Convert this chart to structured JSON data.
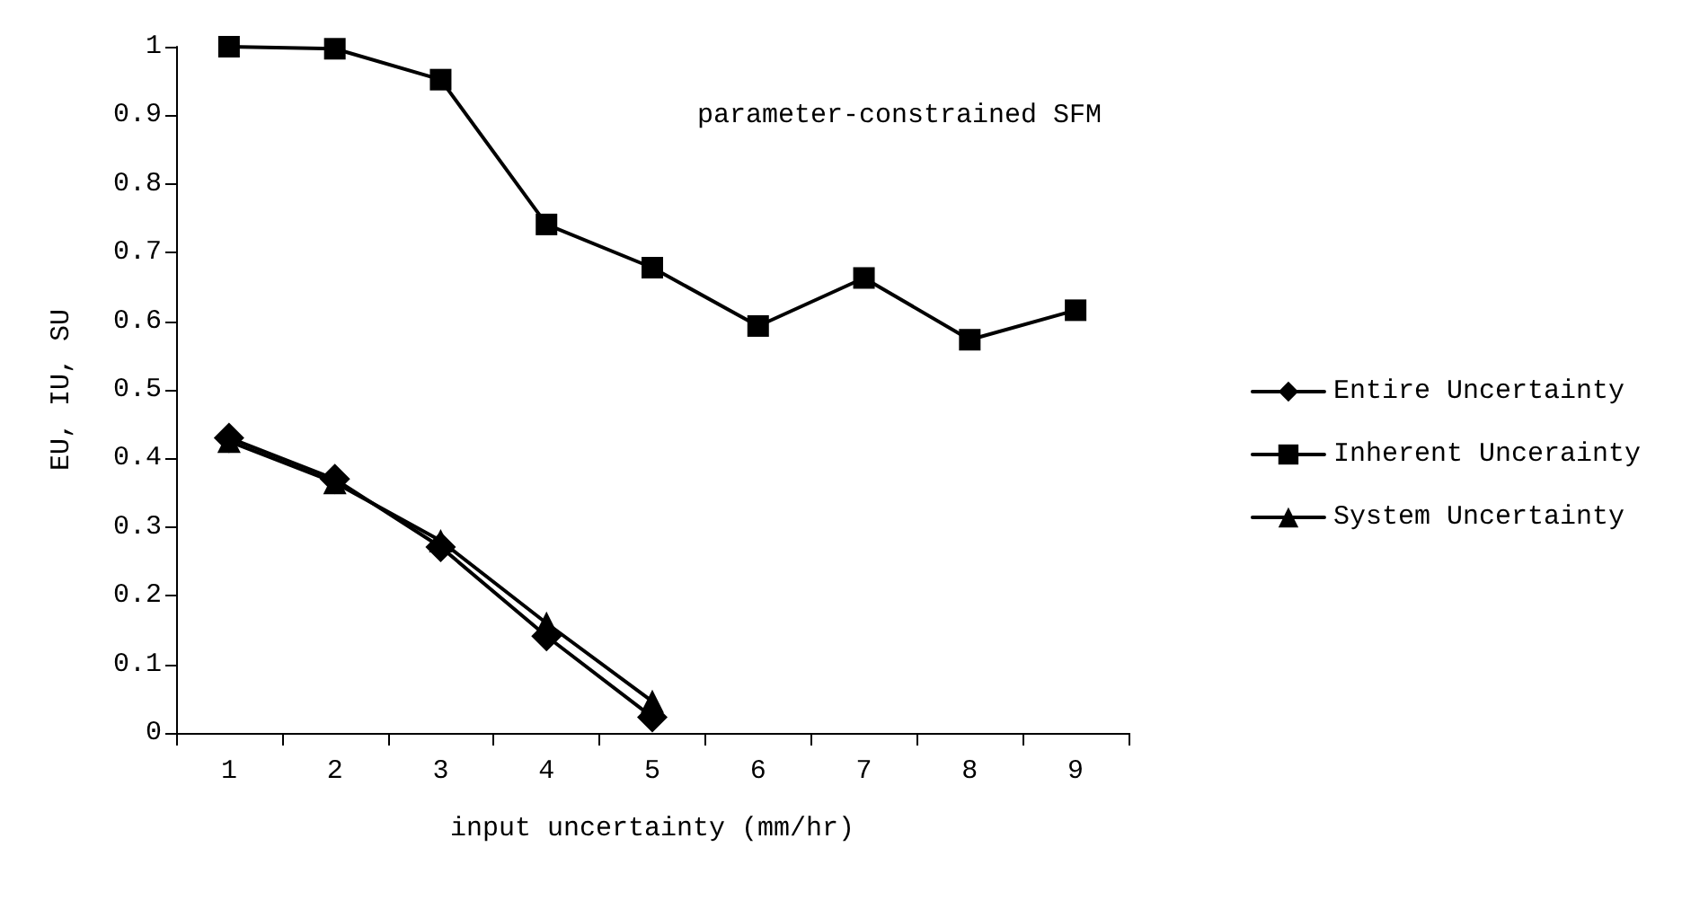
{
  "chart_data": {
    "type": "line",
    "title": "parameter-constrained SFM",
    "xlabel": "input uncertainty (mm/hr)",
    "ylabel": "EU, IU, SU",
    "categories": [
      "1",
      "2",
      "3",
      "4",
      "5",
      "6",
      "7",
      "8",
      "9"
    ],
    "series": [
      {
        "name": "Entire Uncertainty",
        "color": "#000000",
        "marker": "diamond",
        "values": [
          0.43,
          0.37,
          0.271,
          0.141,
          0.023,
          null,
          null,
          null,
          null
        ]
      },
      {
        "name": "Inherent Uncerainty",
        "color": "#000000",
        "marker": "square",
        "values": [
          1.0,
          0.997,
          0.952,
          0.741,
          0.678,
          0.593,
          0.663,
          0.573,
          0.616
        ]
      },
      {
        "name": "System Uncertainty",
        "color": "#000000",
        "marker": "triangle",
        "values": [
          0.425,
          0.365,
          0.28,
          0.16,
          0.046,
          null,
          null,
          null,
          null
        ]
      }
    ],
    "ylim": [
      0,
      1
    ],
    "yticks": [
      0,
      0.1,
      0.2,
      0.3,
      0.4,
      0.5,
      0.6,
      0.7,
      0.8,
      0.9,
      1
    ],
    "grid": false,
    "legend": "right",
    "line_style": "solid"
  }
}
